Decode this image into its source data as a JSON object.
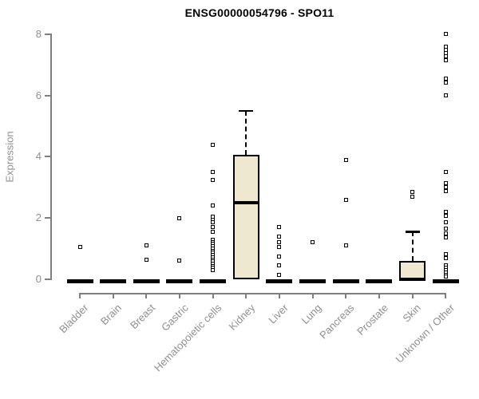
{
  "chart_data": {
    "type": "boxplot",
    "title": "ENSG00000054796 - SPO11",
    "ylabel": "Expression",
    "ylim": [
      0,
      8
    ],
    "yticks": [
      0,
      2,
      4,
      6,
      8
    ],
    "grid": false,
    "legend": "none",
    "box_fill_color": "#EFE8D1",
    "box_border_color": "#000000",
    "axis_color": "#7f7f7f",
    "label_color": "#8f8f8f",
    "categories": [
      "Bladder",
      "Brain",
      "Breast",
      "Gastric",
      "Hematopoietic cells",
      "Kidney",
      "Liver",
      "Lung",
      "Pancreas",
      "Prostate",
      "Skin",
      "Unknown / Other"
    ],
    "boxes": [
      {
        "category": "Bladder",
        "q1": 0,
        "median": 0,
        "q3": 0,
        "whisker_low": 0,
        "whisker_high": 0,
        "outliers": [
          1.05
        ]
      },
      {
        "category": "Brain",
        "q1": 0,
        "median": 0,
        "q3": 0,
        "whisker_low": 0,
        "whisker_high": 0,
        "outliers": []
      },
      {
        "category": "Breast",
        "q1": 0,
        "median": 0,
        "q3": 0,
        "whisker_low": 0,
        "whisker_high": 0,
        "outliers": [
          1.1,
          0.65
        ]
      },
      {
        "category": "Gastric",
        "q1": 0,
        "median": 0,
        "q3": 0,
        "whisker_low": 0,
        "whisker_high": 0,
        "outliers": [
          2.0,
          0.6
        ]
      },
      {
        "category": "Hematopoietic cells",
        "q1": 0,
        "median": 0,
        "q3": 0,
        "whisker_low": 0,
        "whisker_high": 0,
        "outliers": [
          4.4,
          3.5,
          3.25,
          2.4,
          2.05,
          1.95,
          1.85,
          1.7,
          1.55,
          1.3,
          1.22,
          1.15,
          1.08,
          1.0,
          0.93,
          0.86,
          0.79,
          0.72,
          0.65,
          0.58,
          0.51,
          0.44,
          0.37,
          0.3
        ]
      },
      {
        "category": "Kidney",
        "q1": 0,
        "median": 2.5,
        "q3": 4.05,
        "whisker_low": 0,
        "whisker_high": 5.5,
        "outliers": []
      },
      {
        "category": "Liver",
        "q1": 0,
        "median": 0,
        "q3": 0,
        "whisker_low": 0,
        "whisker_high": 0,
        "outliers": [
          1.7,
          1.4,
          1.2,
          1.05,
          0.75,
          0.45,
          0.15
        ]
      },
      {
        "category": "Lung",
        "q1": 0,
        "median": 0,
        "q3": 0,
        "whisker_low": 0,
        "whisker_high": 0,
        "outliers": [
          1.2
        ]
      },
      {
        "category": "Pancreas",
        "q1": 0,
        "median": 0,
        "q3": 0,
        "whisker_low": 0,
        "whisker_high": 0,
        "outliers": [
          3.9,
          2.6,
          1.1
        ]
      },
      {
        "category": "Prostate",
        "q1": 0,
        "median": 0,
        "q3": 0,
        "whisker_low": 0,
        "whisker_high": 0,
        "outliers": []
      },
      {
        "category": "Skin",
        "q1": 0,
        "median": 0,
        "q3": 0.6,
        "whisker_low": 0,
        "whisker_high": 1.55,
        "outliers": [
          2.85,
          2.7
        ]
      },
      {
        "category": "Unknown / Other",
        "q1": 0,
        "median": 0,
        "q3": 0,
        "whisker_low": 0,
        "whisker_high": 0,
        "outliers": [
          8.0,
          7.6,
          7.5,
          7.38,
          7.27,
          7.16,
          6.55,
          6.42,
          6.0,
          3.5,
          3.15,
          3.0,
          2.87,
          2.2,
          2.07,
          1.85,
          1.65,
          1.5,
          1.37,
          0.82,
          0.7,
          0.45,
          0.38,
          0.3,
          0.22,
          0.15,
          0.08
        ]
      }
    ]
  }
}
